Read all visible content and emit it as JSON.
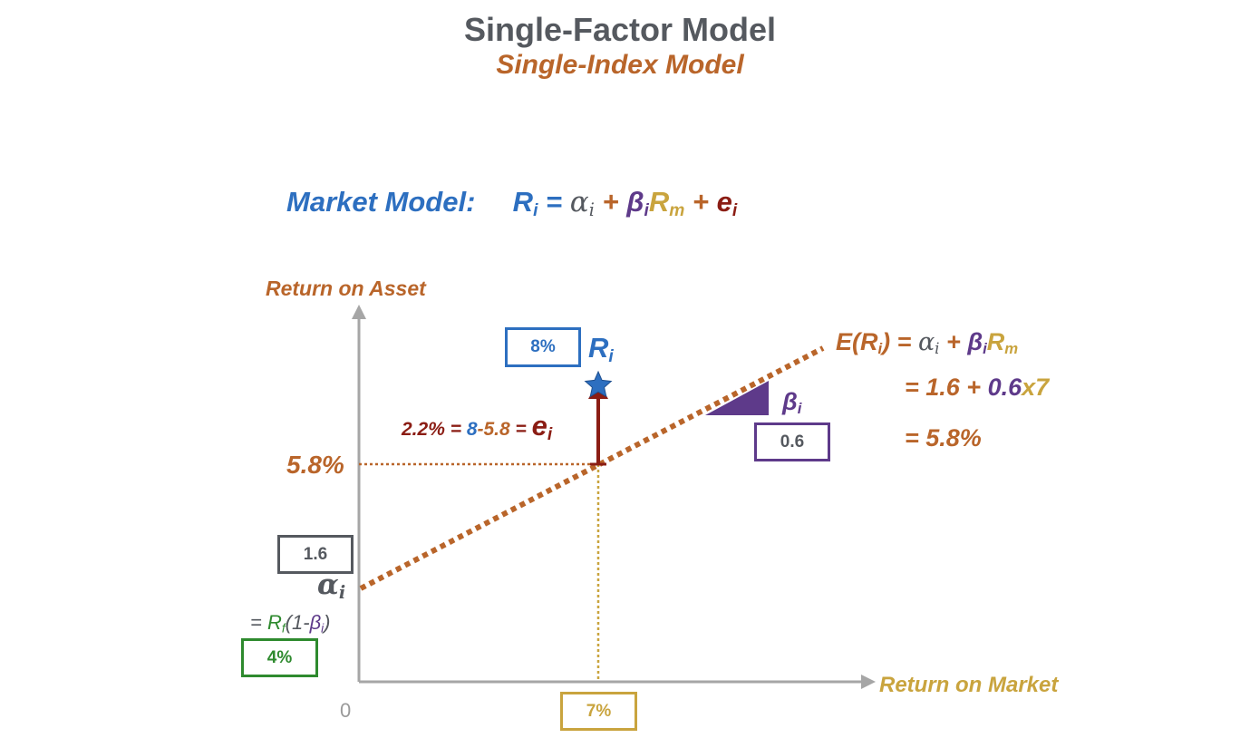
{
  "title": "Single-Factor Model",
  "subtitle": "Single-Index Model",
  "colors": {
    "blue": "#2d6fc0",
    "orange": "#b9652a",
    "gray": "#55595f",
    "purple": "#5e3a8a",
    "gold": "#c9a43e",
    "darkred": "#8b1d14",
    "green": "#2e8a2e"
  },
  "market_model": {
    "label": "Market Model:",
    "r": "R",
    "r_sub": "i",
    "eq": "=",
    "alpha": "α",
    "alpha_sub": "i",
    "plus1": "+",
    "beta": "β",
    "beta_sub": "i",
    "rm": "R",
    "rm_sub": "m",
    "plus2": "+",
    "e": "e",
    "e_sub": "i"
  },
  "axes": {
    "y_label": "Return on Asset",
    "x_label": "Return on Market",
    "origin": "0"
  },
  "expected": {
    "lhs": "E(R",
    "lhs_sub": "i",
    "lhs_close": ") =",
    "alpha": "α",
    "alpha_sub": "i",
    "plus": "+",
    "beta": "β",
    "beta_sub": "i",
    "rm": "R",
    "rm_sub": "m",
    "line2_eq": "= 1.6 +",
    "line2_beta": "0.6",
    "line2_x": "x7",
    "line3": "= 5.8%"
  },
  "annotations": {
    "ri_box": "8%",
    "ri_label": "R",
    "ri_sub": "i",
    "residual_pre": "2.2% =",
    "residual_8": "8",
    "residual_minus": "-5.8",
    "residual_eq": "=",
    "residual_e": "e",
    "residual_e_sub": "i",
    "y_value": "5.8%",
    "beta_label": "β",
    "beta_sub": "i",
    "beta_box": "0.6",
    "alpha_box": "1.6",
    "alpha_label": "α",
    "alpha_sub": "i",
    "rf_eq": "=",
    "rf_r": "R",
    "rf_sub": "f",
    "rf_paren": "(1-",
    "rf_beta": "β",
    "rf_beta_sub": "i",
    "rf_close": ")",
    "rf_box": "4%",
    "x_box": "7%"
  },
  "chart_data": {
    "type": "line",
    "xlabel": "Return on Market",
    "ylabel": "Return on Asset",
    "series": [
      {
        "name": "E(Ri) = αi + βiRm",
        "x": [
          0,
          7
        ],
        "y": [
          1.6,
          5.8
        ]
      }
    ],
    "points": [
      {
        "label": "Ri",
        "x": 7,
        "y": 8
      }
    ],
    "alpha": 1.6,
    "beta": 0.6,
    "market_return": 7,
    "expected_return": 5.8,
    "actual_return": 8,
    "residual": 2.2,
    "risk_free": 4
  }
}
